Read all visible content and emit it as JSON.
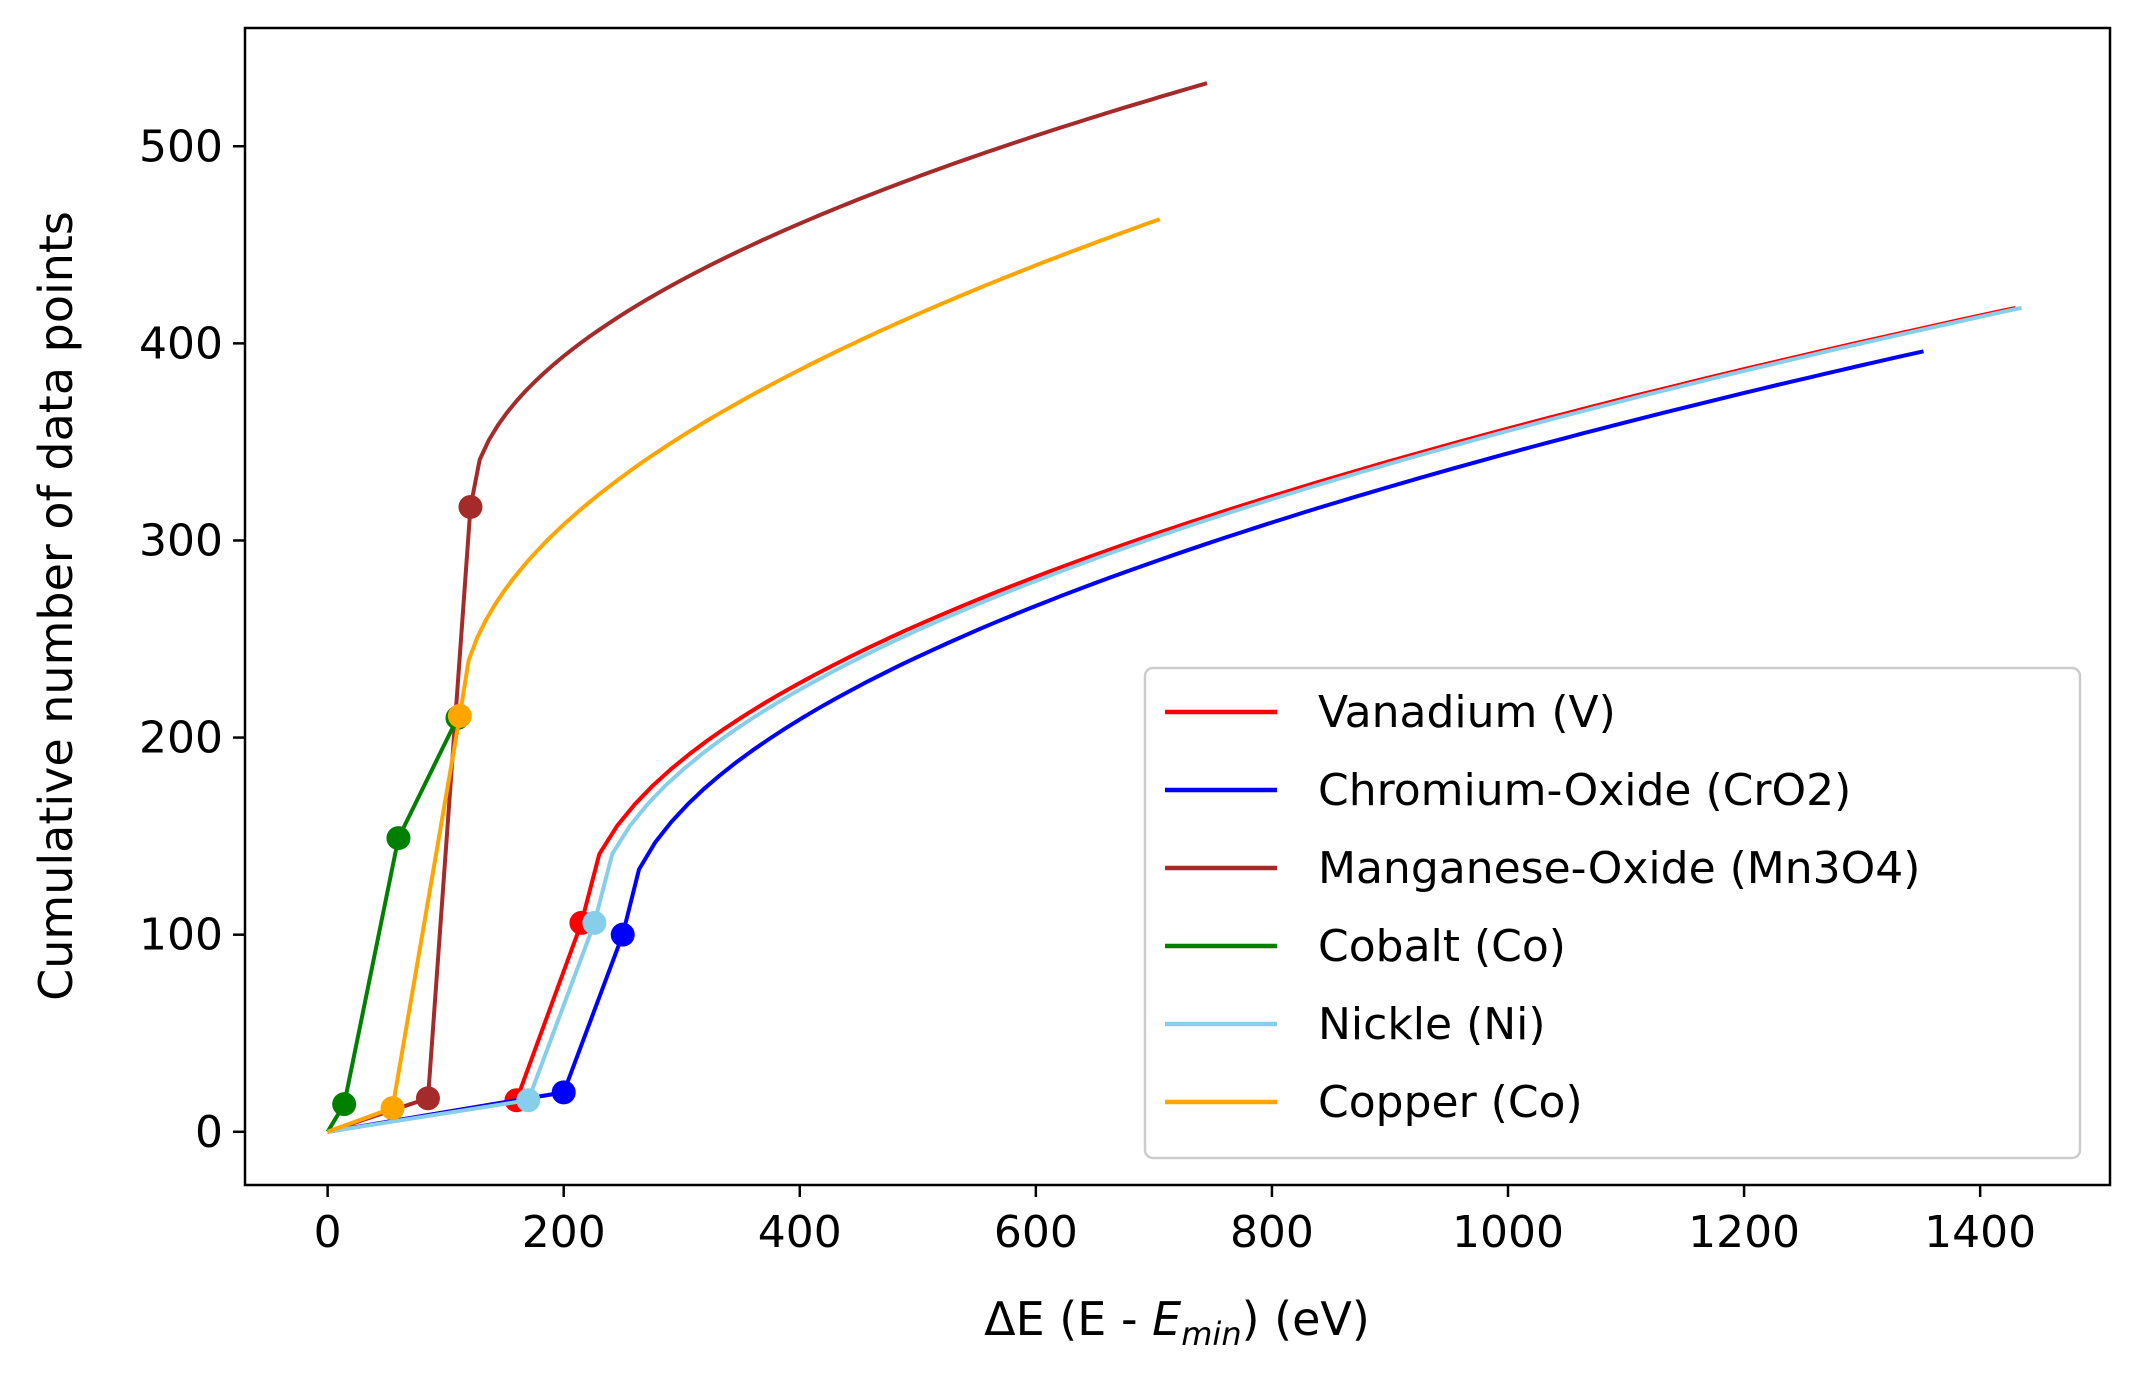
{
  "chart_data": {
    "type": "line",
    "xlabel_parts": [
      "ΔE (E - ",
      "E",
      "min",
      ") (eV)"
    ],
    "ylabel": "Cumulative number of data points",
    "xlim": [
      -70,
      1510
    ],
    "ylim": [
      -27,
      560
    ],
    "xticks": [
      0,
      200,
      400,
      600,
      800,
      1000,
      1200,
      1400
    ],
    "yticks": [
      0,
      100,
      200,
      300,
      400,
      500
    ],
    "grid": false,
    "legend_position": "lower-right",
    "series": [
      {
        "name": "Vanadium (V)",
        "color": "#ff0000",
        "markers": [
          [
            0,
            0
          ],
          [
            160,
            16
          ],
          [
            215,
            106
          ]
        ],
        "curve": {
          "x0": 215,
          "y0": 106,
          "x1": 1430,
          "y1": 418
        }
      },
      {
        "name": "Chromium-Oxide (CrO2)",
        "color": "#0000ff",
        "markers": [
          [
            0,
            0
          ],
          [
            200,
            20
          ],
          [
            250,
            100
          ]
        ],
        "curve": {
          "x0": 250,
          "y0": 100,
          "x1": 1352,
          "y1": 396
        }
      },
      {
        "name": "Manganese-Oxide (Mn3O4)",
        "color": "#a52a2a",
        "markers": [
          [
            0,
            0
          ],
          [
            85,
            17
          ],
          [
            121,
            317
          ]
        ],
        "curve": {
          "x0": 121,
          "y0": 317,
          "x1": 745,
          "y1": 532
        }
      },
      {
        "name": "Cobalt (Co)",
        "color": "#008000",
        "markers": [
          [
            0,
            0
          ],
          [
            14,
            14
          ],
          [
            60,
            149
          ],
          [
            110,
            210
          ]
        ],
        "curve": null
      },
      {
        "name": "Nickle (Ni)",
        "color": "#87ceeb",
        "markers": [
          [
            0,
            0
          ],
          [
            170,
            16
          ],
          [
            226,
            106
          ]
        ],
        "curve": {
          "x0": 226,
          "y0": 106,
          "x1": 1435,
          "y1": 418
        }
      },
      {
        "name": "Copper (Co)",
        "color": "#ffa500",
        "markers": [
          [
            0,
            0
          ],
          [
            55,
            12
          ],
          [
            112,
            211
          ]
        ],
        "curve": {
          "x0": 112,
          "y0": 211,
          "x1": 705,
          "y1": 463
        }
      }
    ]
  }
}
